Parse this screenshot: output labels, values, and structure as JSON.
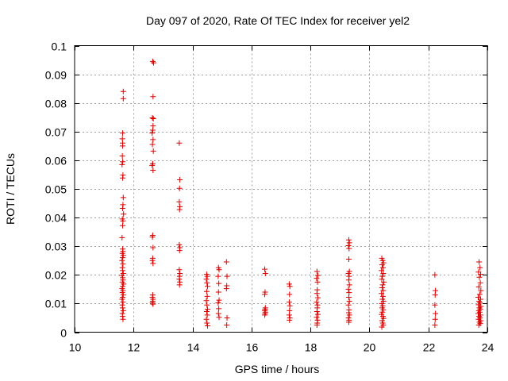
{
  "chart_data": {
    "type": "scatter",
    "title": "Day 097 of 2020, Rate Of TEC Index for receiver yel2",
    "xlabel": "GPS time / hours",
    "ylabel": "ROTI / TECUs",
    "xlim": [
      10,
      24
    ],
    "ylim": [
      0,
      0.1
    ],
    "xticks": [
      "10",
      "12",
      "14",
      "16",
      "18",
      "20",
      "22",
      "24"
    ],
    "yticks": [
      "0",
      "0.01",
      "0.02",
      "0.03",
      "0.04",
      "0.05",
      "0.06",
      "0.07",
      "0.08",
      "0.09",
      "0.1"
    ],
    "grid": true,
    "marker": "+",
    "series": [
      {
        "name": "ROTI",
        "color": "#dd0000",
        "points": [
          [
            11.65,
            0.084
          ],
          [
            11.65,
            0.0815
          ],
          [
            11.63,
            0.0695
          ],
          [
            11.62,
            0.0675
          ],
          [
            11.63,
            0.066
          ],
          [
            11.63,
            0.065
          ],
          [
            11.62,
            0.0615
          ],
          [
            11.63,
            0.0595
          ],
          [
            11.61,
            0.0585
          ],
          [
            11.64,
            0.0548
          ],
          [
            11.63,
            0.0538
          ],
          [
            11.65,
            0.047
          ],
          [
            11.64,
            0.0445
          ],
          [
            11.63,
            0.0432
          ],
          [
            11.66,
            0.0412
          ],
          [
            11.62,
            0.0395
          ],
          [
            11.64,
            0.0388
          ],
          [
            11.63,
            0.0372
          ],
          [
            11.61,
            0.033
          ],
          [
            11.63,
            0.029
          ],
          [
            11.64,
            0.0282
          ],
          [
            11.62,
            0.0275
          ],
          [
            11.65,
            0.0268
          ],
          [
            11.63,
            0.026
          ],
          [
            11.61,
            0.025
          ],
          [
            11.64,
            0.0238
          ],
          [
            11.62,
            0.0225
          ],
          [
            11.63,
            0.0215
          ],
          [
            11.65,
            0.0205
          ],
          [
            11.61,
            0.0198
          ],
          [
            11.63,
            0.019
          ],
          [
            11.64,
            0.0182
          ],
          [
            11.62,
            0.0175
          ],
          [
            11.66,
            0.0168
          ],
          [
            11.63,
            0.016
          ],
          [
            11.61,
            0.0152
          ],
          [
            11.64,
            0.0145
          ],
          [
            11.62,
            0.0138
          ],
          [
            11.65,
            0.013
          ],
          [
            11.63,
            0.0122
          ],
          [
            11.61,
            0.0115
          ],
          [
            11.64,
            0.0105
          ],
          [
            11.62,
            0.0095
          ],
          [
            11.63,
            0.0085
          ],
          [
            11.65,
            0.0075
          ],
          [
            11.62,
            0.0065
          ],
          [
            11.63,
            0.0055
          ],
          [
            11.64,
            0.0045
          ],
          [
            12.65,
            0.0945
          ],
          [
            12.68,
            0.094
          ],
          [
            12.66,
            0.0822
          ],
          [
            12.64,
            0.0748
          ],
          [
            12.67,
            0.0745
          ],
          [
            12.66,
            0.072
          ],
          [
            12.65,
            0.0705
          ],
          [
            12.63,
            0.0695
          ],
          [
            12.66,
            0.0672
          ],
          [
            12.64,
            0.0655
          ],
          [
            12.67,
            0.0632
          ],
          [
            12.65,
            0.0588
          ],
          [
            12.63,
            0.0582
          ],
          [
            12.66,
            0.0565
          ],
          [
            12.65,
            0.0338
          ],
          [
            12.64,
            0.0332
          ],
          [
            12.66,
            0.0295
          ],
          [
            12.65,
            0.0258
          ],
          [
            12.64,
            0.025
          ],
          [
            12.66,
            0.024
          ],
          [
            12.65,
            0.013
          ],
          [
            12.64,
            0.0122
          ],
          [
            12.66,
            0.0115
          ],
          [
            12.65,
            0.0108
          ],
          [
            12.64,
            0.0102
          ],
          [
            12.66,
            0.0098
          ],
          [
            13.55,
            0.066
          ],
          [
            13.57,
            0.0532
          ],
          [
            13.56,
            0.0502
          ],
          [
            13.55,
            0.0455
          ],
          [
            13.57,
            0.0438
          ],
          [
            13.56,
            0.0428
          ],
          [
            13.55,
            0.0305
          ],
          [
            13.57,
            0.0295
          ],
          [
            13.56,
            0.0285
          ],
          [
            13.55,
            0.0218
          ],
          [
            13.57,
            0.0205
          ],
          [
            13.56,
            0.0195
          ],
          [
            13.55,
            0.0185
          ],
          [
            13.57,
            0.0175
          ],
          [
            13.56,
            0.0165
          ],
          [
            14.48,
            0.0202
          ],
          [
            14.5,
            0.0195
          ],
          [
            14.47,
            0.0185
          ],
          [
            14.49,
            0.0172
          ],
          [
            14.51,
            0.016
          ],
          [
            14.48,
            0.0142
          ],
          [
            14.5,
            0.0125
          ],
          [
            14.47,
            0.011
          ],
          [
            14.49,
            0.0095
          ],
          [
            14.51,
            0.008
          ],
          [
            14.48,
            0.0072
          ],
          [
            14.5,
            0.006
          ],
          [
            14.47,
            0.0045
          ],
          [
            14.49,
            0.0032
          ],
          [
            14.51,
            0.0022
          ],
          [
            14.88,
            0.0225
          ],
          [
            14.9,
            0.0218
          ],
          [
            14.87,
            0.0195
          ],
          [
            14.89,
            0.017
          ],
          [
            14.88,
            0.014
          ],
          [
            14.9,
            0.0112
          ],
          [
            14.87,
            0.0102
          ],
          [
            14.89,
            0.0082
          ],
          [
            14.88,
            0.0065
          ],
          [
            14.9,
            0.0052
          ],
          [
            15.15,
            0.0245
          ],
          [
            15.17,
            0.0195
          ],
          [
            15.16,
            0.0162
          ],
          [
            15.15,
            0.0152
          ],
          [
            15.17,
            0.005
          ],
          [
            15.16,
            0.0025
          ],
          [
            16.45,
            0.022
          ],
          [
            16.47,
            0.0205
          ],
          [
            16.46,
            0.014
          ],
          [
            16.45,
            0.0132
          ],
          [
            16.47,
            0.0085
          ],
          [
            16.46,
            0.008
          ],
          [
            16.45,
            0.0075
          ],
          [
            16.47,
            0.007
          ],
          [
            16.46,
            0.0065
          ],
          [
            16.45,
            0.006
          ],
          [
            17.28,
            0.0168
          ],
          [
            17.3,
            0.016
          ],
          [
            17.29,
            0.0132
          ],
          [
            17.28,
            0.0105
          ],
          [
            17.3,
            0.0092
          ],
          [
            17.29,
            0.0075
          ],
          [
            17.28,
            0.006
          ],
          [
            17.3,
            0.005
          ],
          [
            17.29,
            0.0042
          ],
          [
            18.22,
            0.0212
          ],
          [
            18.25,
            0.0198
          ],
          [
            18.21,
            0.0188
          ],
          [
            18.24,
            0.0175
          ],
          [
            18.23,
            0.0148
          ],
          [
            18.22,
            0.0135
          ],
          [
            18.25,
            0.012
          ],
          [
            18.21,
            0.0105
          ],
          [
            18.24,
            0.0095
          ],
          [
            18.23,
            0.0085
          ],
          [
            18.22,
            0.0072
          ],
          [
            18.25,
            0.0062
          ],
          [
            18.21,
            0.0052
          ],
          [
            18.24,
            0.0042
          ],
          [
            18.23,
            0.0032
          ],
          [
            18.22,
            0.0025
          ],
          [
            19.3,
            0.0322
          ],
          [
            19.32,
            0.0312
          ],
          [
            19.29,
            0.0302
          ],
          [
            19.31,
            0.0292
          ],
          [
            19.3,
            0.0255
          ],
          [
            19.32,
            0.0212
          ],
          [
            19.29,
            0.0205
          ],
          [
            19.31,
            0.0195
          ],
          [
            19.3,
            0.0182
          ],
          [
            19.32,
            0.0165
          ],
          [
            19.29,
            0.015
          ],
          [
            19.31,
            0.0138
          ],
          [
            19.3,
            0.0122
          ],
          [
            19.32,
            0.0108
          ],
          [
            19.29,
            0.0095
          ],
          [
            19.31,
            0.0078
          ],
          [
            19.3,
            0.0068
          ],
          [
            19.32,
            0.006
          ],
          [
            19.29,
            0.005
          ],
          [
            19.31,
            0.0042
          ],
          [
            19.3,
            0.0035
          ],
          [
            20.42,
            0.0258
          ],
          [
            20.45,
            0.025
          ],
          [
            20.48,
            0.0242
          ],
          [
            20.43,
            0.0235
          ],
          [
            20.46,
            0.0225
          ],
          [
            20.41,
            0.0215
          ],
          [
            20.47,
            0.0205
          ],
          [
            20.44,
            0.0195
          ],
          [
            20.42,
            0.0185
          ],
          [
            20.49,
            0.0175
          ],
          [
            20.45,
            0.0165
          ],
          [
            20.43,
            0.0155
          ],
          [
            20.47,
            0.0145
          ],
          [
            20.41,
            0.0135
          ],
          [
            20.46,
            0.0125
          ],
          [
            20.44,
            0.0115
          ],
          [
            20.48,
            0.0108
          ],
          [
            20.42,
            0.01
          ],
          [
            20.45,
            0.0092
          ],
          [
            20.43,
            0.0085
          ],
          [
            20.47,
            0.0078
          ],
          [
            20.44,
            0.007
          ],
          [
            20.41,
            0.0062
          ],
          [
            20.46,
            0.0055
          ],
          [
            20.48,
            0.0048
          ],
          [
            20.43,
            0.004
          ],
          [
            20.45,
            0.0032
          ],
          [
            20.47,
            0.0025
          ],
          [
            20.42,
            0.0018
          ],
          [
            22.22,
            0.02
          ],
          [
            22.24,
            0.0145
          ],
          [
            22.23,
            0.013
          ],
          [
            22.22,
            0.0095
          ],
          [
            22.24,
            0.0065
          ],
          [
            22.23,
            0.0045
          ],
          [
            22.22,
            0.0025
          ],
          [
            23.72,
            0.0245
          ],
          [
            23.75,
            0.0225
          ],
          [
            23.7,
            0.021
          ],
          [
            23.77,
            0.0202
          ],
          [
            23.73,
            0.0192
          ],
          [
            23.76,
            0.0172
          ],
          [
            23.71,
            0.0158
          ],
          [
            23.78,
            0.0145
          ],
          [
            23.74,
            0.0132
          ],
          [
            23.69,
            0.0122
          ],
          [
            23.77,
            0.0115
          ],
          [
            23.72,
            0.0108
          ],
          [
            23.75,
            0.0102
          ],
          [
            23.7,
            0.0096
          ],
          [
            23.78,
            0.009
          ],
          [
            23.73,
            0.0085
          ],
          [
            23.76,
            0.008
          ],
          [
            23.71,
            0.0075
          ],
          [
            23.74,
            0.007
          ],
          [
            23.69,
            0.0065
          ],
          [
            23.77,
            0.006
          ],
          [
            23.72,
            0.0055
          ],
          [
            23.75,
            0.005
          ],
          [
            23.7,
            0.0045
          ],
          [
            23.78,
            0.004
          ],
          [
            23.73,
            0.0035
          ],
          [
            23.76,
            0.003
          ],
          [
            23.71,
            0.0025
          ]
        ]
      }
    ]
  }
}
